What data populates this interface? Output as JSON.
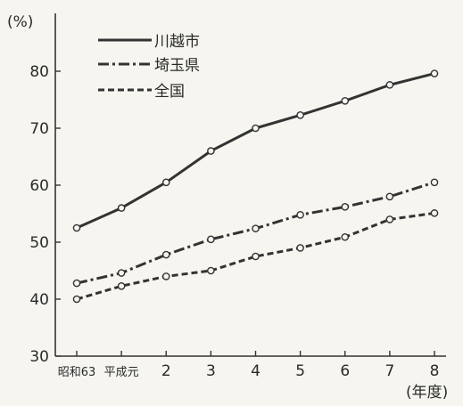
{
  "chart_data": {
    "type": "line",
    "title": "",
    "xlabel": "(年度)",
    "ylabel": "(%)",
    "ylim": [
      30,
      80
    ],
    "yticks": [
      30,
      40,
      50,
      60,
      70,
      80
    ],
    "categories": [
      "昭和63",
      "平成元",
      "2",
      "3",
      "4",
      "5",
      "6",
      "7",
      "8"
    ],
    "grid": false,
    "legend_position": "top-left",
    "series": [
      {
        "name": "川越市",
        "style": "solid",
        "color": "#333333",
        "values": [
          52.5,
          56,
          60.5,
          66,
          70,
          72.3,
          74.8,
          77.6,
          79.6
        ]
      },
      {
        "name": "埼玉県",
        "style": "dash-dot",
        "color": "#333333",
        "values": [
          42.8,
          44.6,
          47.8,
          50.5,
          52.4,
          54.8,
          56.2,
          58,
          60.5
        ]
      },
      {
        "name": "全国",
        "style": "dashed",
        "color": "#333333",
        "values": [
          40,
          42.3,
          44,
          45,
          47.5,
          49,
          50.9,
          54,
          55.1
        ]
      }
    ]
  }
}
